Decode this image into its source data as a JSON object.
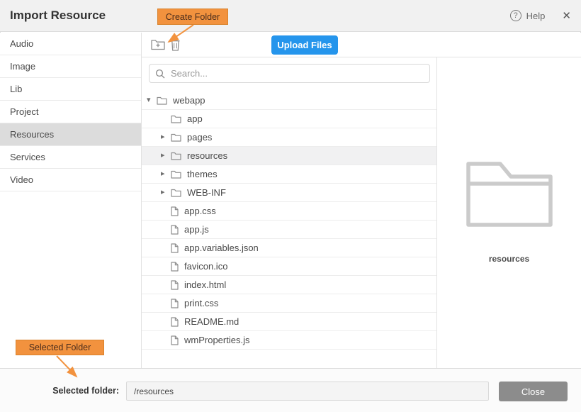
{
  "header": {
    "title": "Import Resource",
    "help_label": "Help"
  },
  "annotations": {
    "create_folder_label": "Create Folder",
    "selected_folder_label": "Selected Folder"
  },
  "sidebar": {
    "items": [
      {
        "label": "Audio",
        "selected": false
      },
      {
        "label": "Image",
        "selected": false
      },
      {
        "label": "Lib",
        "selected": false
      },
      {
        "label": "Project",
        "selected": false
      },
      {
        "label": "Resources",
        "selected": true
      },
      {
        "label": "Services",
        "selected": false
      },
      {
        "label": "Video",
        "selected": false
      }
    ]
  },
  "toolbar": {
    "upload_button": "Upload Files"
  },
  "search": {
    "placeholder": "Search...",
    "value": ""
  },
  "tree": {
    "items": [
      {
        "label": "webapp",
        "type": "folder",
        "caret": "down",
        "level": 0,
        "selected": false
      },
      {
        "label": "app",
        "type": "folder",
        "caret": "none",
        "level": 1,
        "selected": false
      },
      {
        "label": "pages",
        "type": "folder",
        "caret": "right",
        "level": 1,
        "selected": false
      },
      {
        "label": "resources",
        "type": "folder",
        "caret": "right",
        "level": 1,
        "selected": true
      },
      {
        "label": "themes",
        "type": "folder",
        "caret": "right",
        "level": 1,
        "selected": false
      },
      {
        "label": "WEB-INF",
        "type": "folder",
        "caret": "right",
        "level": 1,
        "selected": false
      },
      {
        "label": "app.css",
        "type": "file",
        "caret": "none",
        "level": 1,
        "selected": false
      },
      {
        "label": "app.js",
        "type": "file",
        "caret": "none",
        "level": 1,
        "selected": false
      },
      {
        "label": "app.variables.json",
        "type": "file",
        "caret": "none",
        "level": 1,
        "selected": false
      },
      {
        "label": "favicon.ico",
        "type": "file",
        "caret": "none",
        "level": 1,
        "selected": false
      },
      {
        "label": "index.html",
        "type": "file",
        "caret": "none",
        "level": 1,
        "selected": false
      },
      {
        "label": "print.css",
        "type": "file",
        "caret": "none",
        "level": 1,
        "selected": false
      },
      {
        "label": "README.md",
        "type": "file",
        "caret": "none",
        "level": 1,
        "selected": false
      },
      {
        "label": "wmProperties.js",
        "type": "file",
        "caret": "none",
        "level": 1,
        "selected": false
      }
    ]
  },
  "preview": {
    "selected_folder_name": "resources"
  },
  "footer": {
    "label": "Selected folder:",
    "path_value": "/resources",
    "close_button": "Close"
  },
  "icons": {
    "help": "question-circle",
    "close": "x",
    "new_folder": "folder-plus",
    "delete": "trash",
    "search": "magnifier",
    "caret_down": "▾",
    "caret_right": "▸",
    "folder": "folder-outline",
    "file": "file-outline",
    "preview": "big-folder-outline"
  },
  "colors": {
    "accent_blue": "#2595ec",
    "annotation_orange": "#f2923e",
    "annotation_border": "#d9822b",
    "sidebar_selected_gray": "#dcdcdc",
    "tree_selected_gray": "#f1f1f2",
    "close_button_gray": "#8c8c8c",
    "header_gray": "#f1f1f1"
  }
}
